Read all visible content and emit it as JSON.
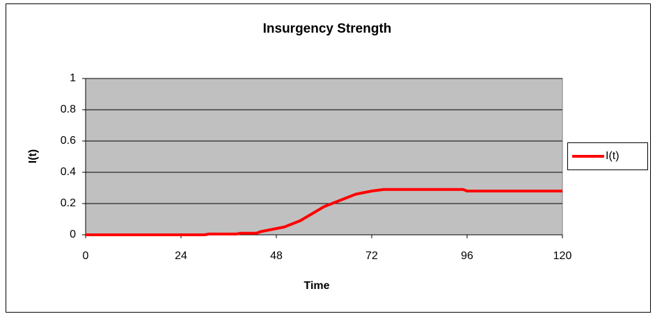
{
  "chart_data": {
    "type": "line",
    "title": "Insurgency Strength",
    "x_label": "Time",
    "y_label": "I(t)",
    "x": [
      0,
      10,
      20,
      30,
      31,
      38,
      39,
      43,
      44,
      46,
      48,
      50,
      52,
      54,
      56,
      58,
      60,
      63,
      66,
      68,
      70,
      72,
      75,
      85,
      95,
      96,
      110,
      120
    ],
    "series": [
      {
        "name": "I(t)",
        "color": "#ff0000",
        "values": [
          0,
          0,
          0,
          0,
          0.005,
          0.005,
          0.01,
          0.01,
          0.02,
          0.03,
          0.04,
          0.05,
          0.07,
          0.09,
          0.12,
          0.15,
          0.18,
          0.21,
          0.24,
          0.26,
          0.27,
          0.28,
          0.29,
          0.29,
          0.29,
          0.28,
          0.28,
          0.28
        ]
      }
    ],
    "xlim": [
      0,
      120
    ],
    "xticks": [
      0,
      24,
      48,
      72,
      96,
      120
    ],
    "ylim": [
      0,
      1
    ],
    "yticks": [
      0,
      0.2,
      0.4,
      0.6,
      0.8,
      1
    ],
    "grid": true,
    "legend": "right",
    "plot_background": "#c0c0c0"
  }
}
